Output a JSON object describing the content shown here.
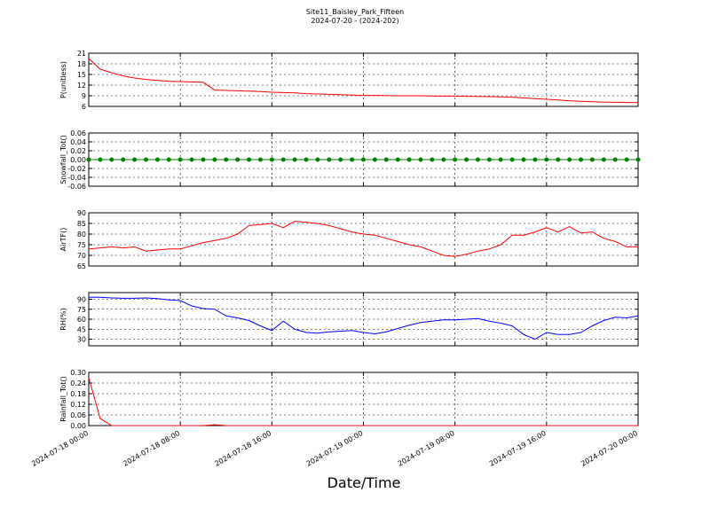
{
  "title": "Site11_Baisley_Park_Fifteen",
  "subtitle": "2024-07-20 - (2024-202)",
  "xlabel": "Date/Time",
  "xlim": [
    "2024-07-18 00:00",
    "2024-07-20 00:00"
  ],
  "xticks": [
    "2024-07-18 00:00",
    "2024-07-18 08:00",
    "2024-07-18 16:00",
    "2024-07-19 00:00",
    "2024-07-19 08:00",
    "2024-07-19 16:00",
    "2024-07-20 00:00"
  ],
  "x": [
    "2024-07-18 00:00",
    "2024-07-18 01:00",
    "2024-07-18 02:00",
    "2024-07-18 03:00",
    "2024-07-18 04:00",
    "2024-07-18 05:00",
    "2024-07-18 06:00",
    "2024-07-18 07:00",
    "2024-07-18 08:00",
    "2024-07-18 09:00",
    "2024-07-18 10:00",
    "2024-07-18 11:00",
    "2024-07-18 12:00",
    "2024-07-18 13:00",
    "2024-07-18 14:00",
    "2024-07-18 15:00",
    "2024-07-18 16:00",
    "2024-07-18 17:00",
    "2024-07-18 18:00",
    "2024-07-18 19:00",
    "2024-07-18 20:00",
    "2024-07-18 21:00",
    "2024-07-18 22:00",
    "2024-07-18 23:00",
    "2024-07-19 00:00",
    "2024-07-19 01:00",
    "2024-07-19 02:00",
    "2024-07-19 03:00",
    "2024-07-19 04:00",
    "2024-07-19 05:00",
    "2024-07-19 06:00",
    "2024-07-19 07:00",
    "2024-07-19 08:00",
    "2024-07-19 09:00",
    "2024-07-19 10:00",
    "2024-07-19 11:00",
    "2024-07-19 12:00",
    "2024-07-19 13:00",
    "2024-07-19 14:00",
    "2024-07-19 15:00",
    "2024-07-19 16:00",
    "2024-07-19 17:00",
    "2024-07-19 18:00",
    "2024-07-19 19:00",
    "2024-07-19 20:00",
    "2024-07-19 21:00",
    "2024-07-19 22:00",
    "2024-07-19 23:00",
    "2024-07-20 00:00"
  ],
  "chart_data": [
    {
      "type": "line",
      "ylabel": "P(unitless)",
      "ylim": [
        6,
        21
      ],
      "yticks": [
        6,
        9,
        12,
        15,
        18,
        21
      ],
      "grid": true,
      "series": [
        {
          "color": "#ff0000",
          "values": [
            19.5,
            16.5,
            15.5,
            14.6,
            14,
            13.6,
            13.3,
            13.1,
            13,
            12.9,
            12.8,
            10.6,
            10.5,
            10.4,
            10.3,
            10.2,
            10,
            9.9,
            9.8,
            9.6,
            9.5,
            9.4,
            9.3,
            9.2,
            9.1,
            9.1,
            9.05,
            9,
            9,
            9,
            8.95,
            8.9,
            8.9,
            8.85,
            8.8,
            8.75,
            8.7,
            8.6,
            8.4,
            8.2,
            8,
            7.8,
            7.6,
            7.45,
            7.3,
            7.2,
            7.15,
            7.1,
            7.1
          ]
        }
      ]
    },
    {
      "type": "line",
      "markers": true,
      "ylabel": "Snowfall_Tot()",
      "ylim": [
        -0.06,
        0.06
      ],
      "yticks": [
        -0.06,
        -0.04,
        -0.02,
        {
          "value": 0,
          "label": "0.00"
        },
        0.02,
        0.04,
        0.06
      ],
      "grid": true,
      "series": [
        {
          "color": "#008000",
          "values": [
            0,
            0,
            0,
            0,
            0,
            0,
            0,
            0,
            0,
            0,
            0,
            0,
            0,
            0,
            0,
            0,
            0,
            0,
            0,
            0,
            0,
            0,
            0,
            0,
            0,
            0,
            0,
            0,
            0,
            0,
            0,
            0,
            0,
            0,
            0,
            0,
            0,
            0,
            0,
            0,
            0,
            0,
            0,
            0,
            0,
            0,
            0,
            0,
            0
          ]
        }
      ]
    },
    {
      "type": "line",
      "ylabel": "AirTF()",
      "ylim": [
        65,
        90
      ],
      "yticks": [
        65,
        70,
        75,
        80,
        85,
        90
      ],
      "grid": true,
      "series": [
        {
          "color": "#ff0000",
          "values": [
            73,
            73.5,
            74,
            73.5,
            74,
            72,
            72.5,
            73,
            73,
            74.5,
            76,
            77,
            78,
            80,
            84,
            84.5,
            85,
            83,
            86,
            85.5,
            85,
            84,
            82.5,
            81,
            80,
            79.5,
            78,
            76.5,
            75,
            74,
            72,
            70,
            69.5,
            70.5,
            72,
            73,
            75,
            79.5,
            79.5,
            81,
            83,
            81,
            83.5,
            80.5,
            81,
            78,
            76.5,
            74,
            74
          ]
        }
      ]
    },
    {
      "type": "line",
      "ylabel": "RH(%)",
      "ylim": [
        20,
        100
      ],
      "yticks": [
        30,
        45,
        60,
        75,
        90
      ],
      "grid": true,
      "series": [
        {
          "color": "#0000ff",
          "values": [
            93,
            93,
            92,
            91.5,
            91.5,
            92,
            91,
            89,
            88,
            80,
            76,
            75,
            65,
            62,
            58,
            50,
            43,
            57,
            45,
            40,
            39,
            41,
            42,
            43,
            40,
            38,
            41,
            46,
            51,
            55,
            57,
            59,
            59,
            60,
            61,
            57,
            54,
            50,
            37,
            30,
            40,
            37,
            37,
            40,
            50,
            58,
            63,
            62,
            65
          ]
        }
      ]
    },
    {
      "type": "line",
      "ylabel": "Rainfall_Tot()",
      "ylim": [
        0,
        0.3
      ],
      "yticks": [
        {
          "value": 0,
          "label": "0.00"
        },
        0.06,
        0.12,
        0.18,
        0.24,
        {
          "value": 0.3,
          "label": "0.30"
        }
      ],
      "grid": true,
      "series": [
        {
          "color": "#ff0000",
          "values": [
            0.27,
            0.04,
            0,
            0,
            0,
            0,
            0,
            0,
            0,
            0,
            0,
            0.005,
            0,
            0,
            0,
            0,
            0,
            0,
            0,
            0,
            0,
            0,
            0,
            0,
            0,
            0,
            0,
            0,
            0,
            0,
            0,
            0,
            0,
            0,
            0,
            0,
            0,
            0,
            0,
            0,
            0,
            0,
            0,
            0,
            0,
            0,
            0,
            0,
            0
          ]
        }
      ]
    }
  ]
}
